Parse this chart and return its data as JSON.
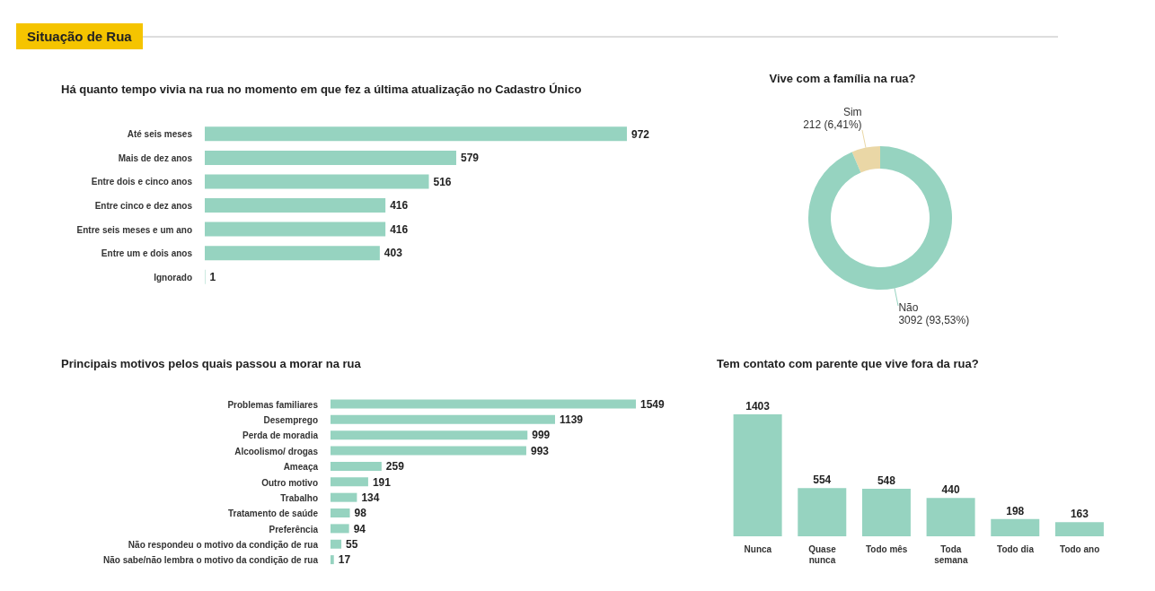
{
  "chart_data": [
    {
      "type": "other",
      "title": "Situação de Rua"
    },
    {
      "type": "bar",
      "title": "Há quanto tempo vivia na rua no momento em que fez a última atualização no Cadastro Único",
      "orientation": "horizontal",
      "categories": [
        "Até seis meses",
        "Mais de dez anos",
        "Entre dois e cinco anos",
        "Entre cinco e dez anos",
        "Entre seis meses e um ano",
        "Entre um e dois anos",
        "Ignorado"
      ],
      "values": [
        972,
        579,
        516,
        416,
        416,
        403,
        1
      ],
      "color": "#96d3c0",
      "data_labels": true
    },
    {
      "type": "donut",
      "title": "Vive com a família na rua?",
      "categories": [
        "Sim",
        "Não"
      ],
      "values": [
        212,
        3092
      ],
      "value_labels": [
        "212 (6,41%)",
        "3092 (93,53%)"
      ],
      "colors": [
        "#ead7a6",
        "#96d3c0"
      ]
    },
    {
      "type": "bar",
      "title": "Principais motivos pelos quais passou a morar na rua",
      "orientation": "horizontal",
      "categories": [
        "Problemas familiares",
        "Desemprego",
        "Perda de moradia",
        "Alcoolismo/ drogas",
        "Ameaça",
        "Outro motivo",
        "Trabalho",
        "Tratamento de saúde",
        "Preferência",
        "Não respondeu o motivo da condição de rua",
        "Não sabe/não lembra o motivo da condição de rua"
      ],
      "values": [
        1549,
        1139,
        999,
        993,
        259,
        191,
        134,
        98,
        94,
        55,
        17
      ],
      "color": "#96d3c0",
      "data_labels": true
    },
    {
      "type": "bar",
      "title": "Tem contato com parente que vive fora da rua?",
      "categories": [
        "Nunca",
        "Quase nunca",
        "Todo mês",
        "Toda semana",
        "Todo dia",
        "Todo ano"
      ],
      "values": [
        1403,
        554,
        548,
        440,
        198,
        163
      ],
      "color": "#96d3c0",
      "data_labels": true
    }
  ]
}
